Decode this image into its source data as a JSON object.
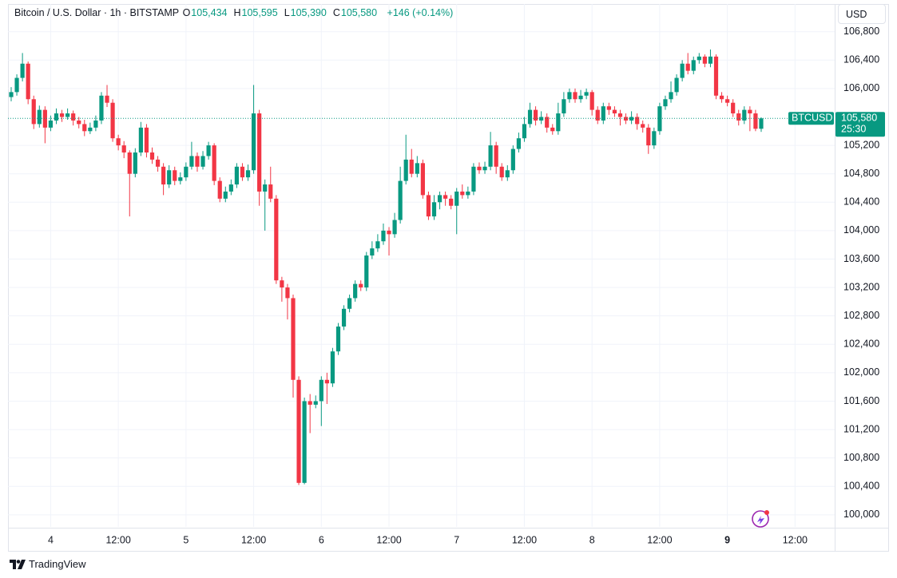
{
  "header": {
    "title": "Bitcoin / U.S. Dollar · 1h · BITSTAMP",
    "ohlc": [
      {
        "key": "O",
        "value": "105,434"
      },
      {
        "key": "H",
        "value": "105,595"
      },
      {
        "key": "L",
        "value": "105,390"
      },
      {
        "key": "C",
        "value": "105,580"
      }
    ],
    "change": "+146 (+0.14%)"
  },
  "currency": "USD",
  "brand": "TradingView",
  "chart_data": {
    "type": "candlestick",
    "categories": [
      null,
      null,
      null,
      null,
      null,
      null,
      null,
      "4",
      null,
      null,
      null,
      null,
      null,
      null,
      null,
      null,
      null,
      null,
      null,
      "12:00",
      null,
      null,
      null,
      null,
      null,
      null,
      null,
      null,
      null,
      null,
      null,
      "5",
      null,
      null,
      null,
      null,
      null,
      null,
      null,
      null,
      null,
      null,
      null,
      "12:00",
      null,
      null,
      null,
      null,
      null,
      null,
      null,
      null,
      null,
      null,
      null,
      "6",
      null,
      null,
      null,
      null,
      null,
      null,
      null,
      null,
      null,
      null,
      null,
      "12:00",
      null,
      null,
      null,
      null,
      null,
      null,
      null,
      null,
      null,
      null,
      null,
      "7",
      null,
      null,
      null,
      null,
      null,
      null,
      null,
      null,
      null,
      null,
      null,
      "12:00",
      null,
      null,
      null,
      null,
      null,
      null,
      null,
      null,
      null,
      null,
      null,
      "8",
      null,
      null,
      null,
      null,
      null,
      null,
      null,
      null,
      null,
      null,
      null,
      "12:00",
      null,
      null,
      null,
      null,
      null,
      null,
      null,
      null,
      null,
      null,
      null,
      "9",
      null,
      null,
      null,
      null,
      null,
      null,
      null,
      null,
      null,
      null,
      null,
      "12:00"
    ],
    "open": [
      105880,
      105950,
      106150,
      106350,
      105850,
      105500,
      105700,
      105450,
      105550,
      105650,
      105600,
      105650,
      105550,
      105500,
      105400,
      105450,
      105550,
      105900,
      105800,
      105300,
      105200,
      105100,
      104800,
      105100,
      105450,
      105100,
      105000,
      104900,
      104650,
      104850,
      104700,
      104750,
      104900,
      105050,
      104900,
      105050,
      105200,
      104700,
      104450,
      104550,
      104650,
      104900,
      104750,
      104850,
      105650,
      104550,
      104650,
      104450,
      103300,
      103200,
      103050,
      101900,
      100450,
      101600,
      101550,
      101600,
      101900,
      101850,
      102300,
      102650,
      102900,
      103050,
      103250,
      103200,
      103650,
      103750,
      103850,
      104000,
      103950,
      104150,
      104700,
      105000,
      104800,
      104950,
      104500,
      104200,
      104400,
      104500,
      104450,
      104350,
      104550,
      104500,
      104550,
      104900,
      104850,
      104900,
      105200,
      104900,
      104750,
      104850,
      105150,
      105300,
      105500,
      105700,
      105550,
      105600,
      105450,
      105400,
      105650,
      105850,
      105950,
      105850,
      105900,
      105950,
      105700,
      105550,
      105750,
      105700,
      105650,
      105600,
      105550,
      105600,
      105500,
      105450,
      105200,
      105400,
      105750,
      105850,
      105950,
      106150,
      106350,
      106250,
      106400,
      106450,
      106350,
      106450,
      105900,
      105850,
      105800,
      105650,
      105550,
      105700,
      105650,
      105434,
      null,
      null,
      null,
      null,
      null,
      null
    ],
    "high": [
      106020,
      106200,
      106500,
      106380,
      105900,
      105760,
      105750,
      105620,
      105720,
      105700,
      105720,
      105690,
      105600,
      105560,
      105520,
      105620,
      105950,
      106050,
      105850,
      105350,
      105260,
      105130,
      105160,
      105530,
      105500,
      105170,
      105050,
      104950,
      104920,
      104900,
      104820,
      104960,
      105250,
      105100,
      105120,
      105250,
      105230,
      104750,
      104620,
      104720,
      104950,
      104950,
      104930,
      106050,
      105700,
      104720,
      104900,
      104500,
      103350,
      103250,
      103100,
      101950,
      101650,
      101700,
      101680,
      101950,
      102000,
      102350,
      102700,
      102950,
      103100,
      103300,
      103300,
      103700,
      103850,
      103950,
      104100,
      104050,
      104250,
      104900,
      105350,
      105150,
      105050,
      105000,
      104550,
      104500,
      104550,
      104550,
      104500,
      104600,
      104650,
      104620,
      104950,
      104960,
      104970,
      105390,
      105250,
      104950,
      104920,
      105200,
      105380,
      105600,
      105800,
      105750,
      105680,
      105650,
      105500,
      105800,
      105950,
      106000,
      106000,
      105980,
      106000,
      105980,
      105750,
      105800,
      105800,
      105750,
      105700,
      105650,
      105680,
      105650,
      105550,
      105500,
      105450,
      105800,
      105900,
      106100,
      106200,
      106400,
      106500,
      106450,
      106500,
      106480,
      106550,
      106480,
      105950,
      105900,
      105850,
      105700,
      105750,
      105750,
      105700,
      105595,
      null,
      null,
      null,
      null,
      null,
      null
    ],
    "low": [
      105820,
      105900,
      106100,
      105780,
      105430,
      105450,
      105230,
      105400,
      105500,
      105530,
      105560,
      105480,
      105440,
      105330,
      105360,
      105400,
      105500,
      105740,
      105250,
      105130,
      105020,
      104200,
      104750,
      105050,
      105030,
      104940,
      104830,
      104500,
      104600,
      104640,
      104650,
      104700,
      104860,
      104830,
      104860,
      105000,
      104640,
      104400,
      104400,
      104500,
      104600,
      104700,
      104700,
      104800,
      104350,
      104000,
      104400,
      103250,
      103000,
      102750,
      101650,
      100420,
      100430,
      101150,
      101500,
      101250,
      101560,
      101800,
      102250,
      102600,
      102850,
      103000,
      103150,
      103150,
      103600,
      103700,
      103800,
      103650,
      103900,
      104100,
      104650,
      104750,
      104750,
      104450,
      104150,
      104150,
      104300,
      104350,
      104300,
      103950,
      104450,
      104450,
      104500,
      104800,
      104800,
      104850,
      104800,
      104700,
      104700,
      104800,
      105100,
      105250,
      105450,
      105480,
      105500,
      105380,
      105350,
      105350,
      105600,
      105800,
      105800,
      105800,
      105850,
      105620,
      105500,
      105500,
      105630,
      105600,
      105480,
      105500,
      105500,
      105420,
      105380,
      105080,
      105150,
      105350,
      105700,
      105800,
      105900,
      106100,
      106200,
      106200,
      106350,
      106300,
      106300,
      105850,
      105800,
      105750,
      105600,
      105480,
      105500,
      105400,
      105400,
      105390,
      null,
      null,
      null,
      null,
      null,
      null
    ],
    "close": [
      105950,
      106150,
      106350,
      105850,
      105500,
      105700,
      105450,
      105550,
      105650,
      105600,
      105650,
      105550,
      105500,
      105400,
      105450,
      105550,
      105900,
      105800,
      105300,
      105200,
      105100,
      104800,
      105100,
      105450,
      105100,
      105000,
      104900,
      104650,
      104850,
      104700,
      104750,
      104900,
      105050,
      104900,
      105050,
      105200,
      104700,
      104450,
      104550,
      104650,
      104900,
      104750,
      104850,
      105650,
      104550,
      104650,
      104450,
      103300,
      103200,
      103050,
      101900,
      100450,
      101600,
      101550,
      101600,
      101900,
      101850,
      102300,
      102650,
      102900,
      103050,
      103250,
      103200,
      103650,
      103750,
      103850,
      104000,
      103950,
      104150,
      104700,
      105000,
      104800,
      104950,
      104500,
      104200,
      104400,
      104500,
      104450,
      104350,
      104550,
      104500,
      104550,
      104900,
      104850,
      104900,
      105200,
      104900,
      104750,
      104850,
      105150,
      105300,
      105500,
      105700,
      105550,
      105600,
      105450,
      105400,
      105650,
      105850,
      105950,
      105850,
      105900,
      105950,
      105700,
      105550,
      105750,
      105700,
      105650,
      105600,
      105550,
      105600,
      105500,
      105450,
      105200,
      105400,
      105750,
      105850,
      105950,
      106150,
      106350,
      106250,
      106400,
      106450,
      106350,
      106450,
      105900,
      105850,
      105800,
      105650,
      105550,
      105700,
      105650,
      105434,
      105580,
      null,
      null,
      null,
      null,
      null,
      null
    ],
    "up_color": "#089981",
    "down_color": "#f23645",
    "ylim": [
      99830,
      107190
    ],
    "yticks": [
      {
        "value": 100000,
        "label": "100,000"
      },
      {
        "value": 100400,
        "label": "100,400"
      },
      {
        "value": 100800,
        "label": "100,800"
      },
      {
        "value": 101200,
        "label": "101,200"
      },
      {
        "value": 101600,
        "label": "101,600"
      },
      {
        "value": 102000,
        "label": "102,000"
      },
      {
        "value": 102400,
        "label": "102,400"
      },
      {
        "value": 102800,
        "label": "102,800"
      },
      {
        "value": 103200,
        "label": "103,200"
      },
      {
        "value": 103600,
        "label": "103,600"
      },
      {
        "value": 104000,
        "label": "104,000"
      },
      {
        "value": 104400,
        "label": "104,400"
      },
      {
        "value": 104800,
        "label": "104,800"
      },
      {
        "value": 105200,
        "label": "105,200"
      },
      {
        "value": 106000,
        "label": "106,000"
      },
      {
        "value": 106400,
        "label": "106,400"
      },
      {
        "value": 106800,
        "label": "106,800"
      }
    ],
    "grid": true,
    "symbol": "BTCUSD",
    "last_price": {
      "value": 105580,
      "label": "105,580"
    },
    "countdown": "25:30"
  }
}
